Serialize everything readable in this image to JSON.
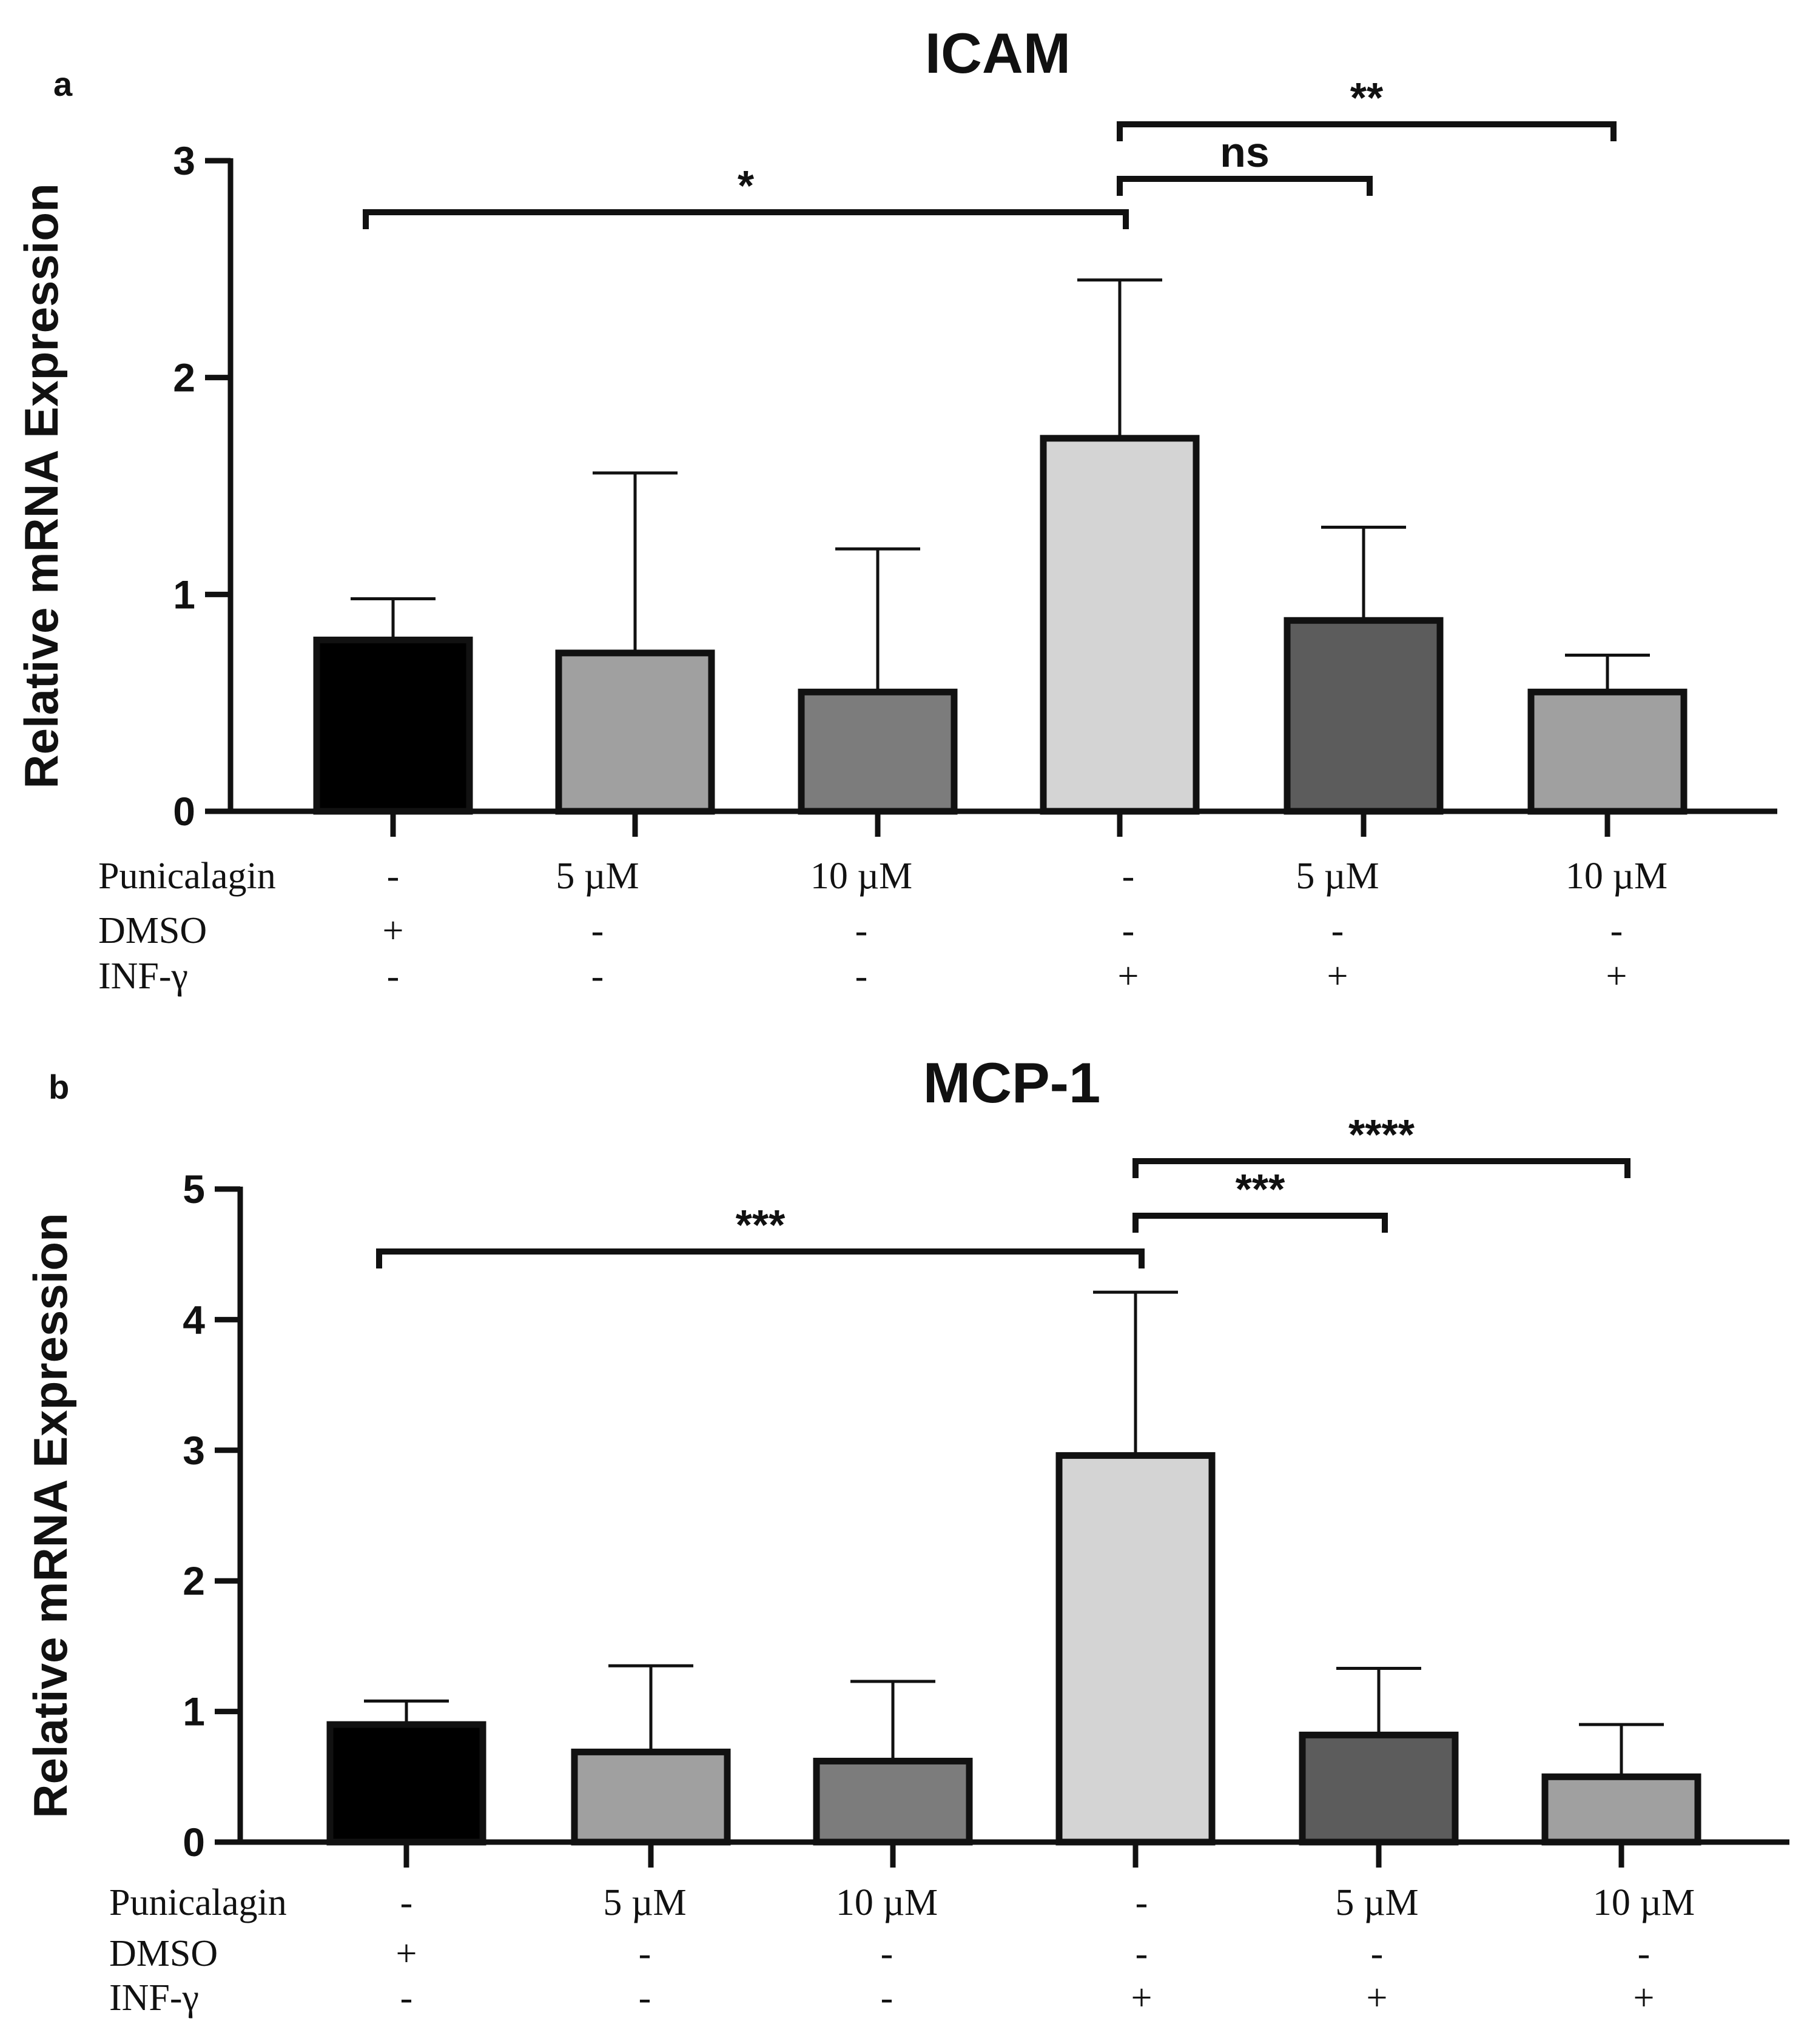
{
  "chart_data": [
    {
      "type": "bar",
      "panel": "a",
      "title": "ICAM",
      "ylabel": "Relative mRNA Expression",
      "ylim": [
        0,
        3
      ],
      "yticks": [
        0,
        1,
        2,
        3
      ],
      "ytick_labels": [
        "0",
        "1",
        "2",
        "3"
      ],
      "grid": false,
      "values": [
        0.79,
        0.73,
        0.55,
        1.72,
        0.88,
        0.55
      ],
      "error_upper": [
        0.98,
        1.56,
        1.21,
        2.45,
        1.31,
        0.72
      ],
      "bar_colors": [
        "#000000",
        "#a0a0a0",
        "#7c7c7c",
        "#d4d4d4",
        "#5c5c5c",
        "#a0a0a0"
      ],
      "conditions": [
        {
          "name": "Punicalagin",
          "values": [
            "-",
            "5 µM",
            "10 µM",
            "-",
            "5 µM",
            "10 µM"
          ]
        },
        {
          "name": "DMSO",
          "values": [
            "+",
            "-",
            "-",
            "-",
            "-",
            "-"
          ]
        },
        {
          "name": "INF-γ",
          "values": [
            "-",
            "-",
            "-",
            "+",
            "+",
            "+"
          ]
        }
      ],
      "significance": [
        {
          "from": 0,
          "to": 3,
          "label": "*"
        },
        {
          "from": 3,
          "to": 4,
          "label": "ns"
        },
        {
          "from": 3,
          "to": 5,
          "label": "**"
        }
      ]
    },
    {
      "type": "bar",
      "panel": "b",
      "title": "MCP-1",
      "ylabel": "Relative mRNA Expression",
      "ylim": [
        0,
        5
      ],
      "yticks": [
        0,
        1,
        2,
        3,
        4,
        5
      ],
      "ytick_labels": [
        "0",
        "1",
        "2",
        "3",
        "4",
        "5"
      ],
      "grid": false,
      "values": [
        0.9,
        0.69,
        0.62,
        2.96,
        0.82,
        0.5
      ],
      "error_upper": [
        1.08,
        1.35,
        1.23,
        4.21,
        1.33,
        0.9
      ],
      "bar_colors": [
        "#000000",
        "#a0a0a0",
        "#7c7c7c",
        "#d4d4d4",
        "#5c5c5c",
        "#a0a0a0"
      ],
      "conditions": [
        {
          "name": "Punicalagin",
          "values": [
            "-",
            "5 µM",
            "10 µM",
            "-",
            "5 µM",
            "10 µM"
          ]
        },
        {
          "name": "DMSO",
          "values": [
            "+",
            "-",
            "-",
            "-",
            "-",
            "-"
          ]
        },
        {
          "name": "INF-γ",
          "values": [
            "-",
            "-",
            "-",
            "+",
            "+",
            "+"
          ]
        }
      ],
      "significance": [
        {
          "from": 0,
          "to": 3,
          "label": "***"
        },
        {
          "from": 3,
          "to": 4,
          "label": "***"
        },
        {
          "from": 3,
          "to": 5,
          "label": "****"
        }
      ]
    }
  ]
}
